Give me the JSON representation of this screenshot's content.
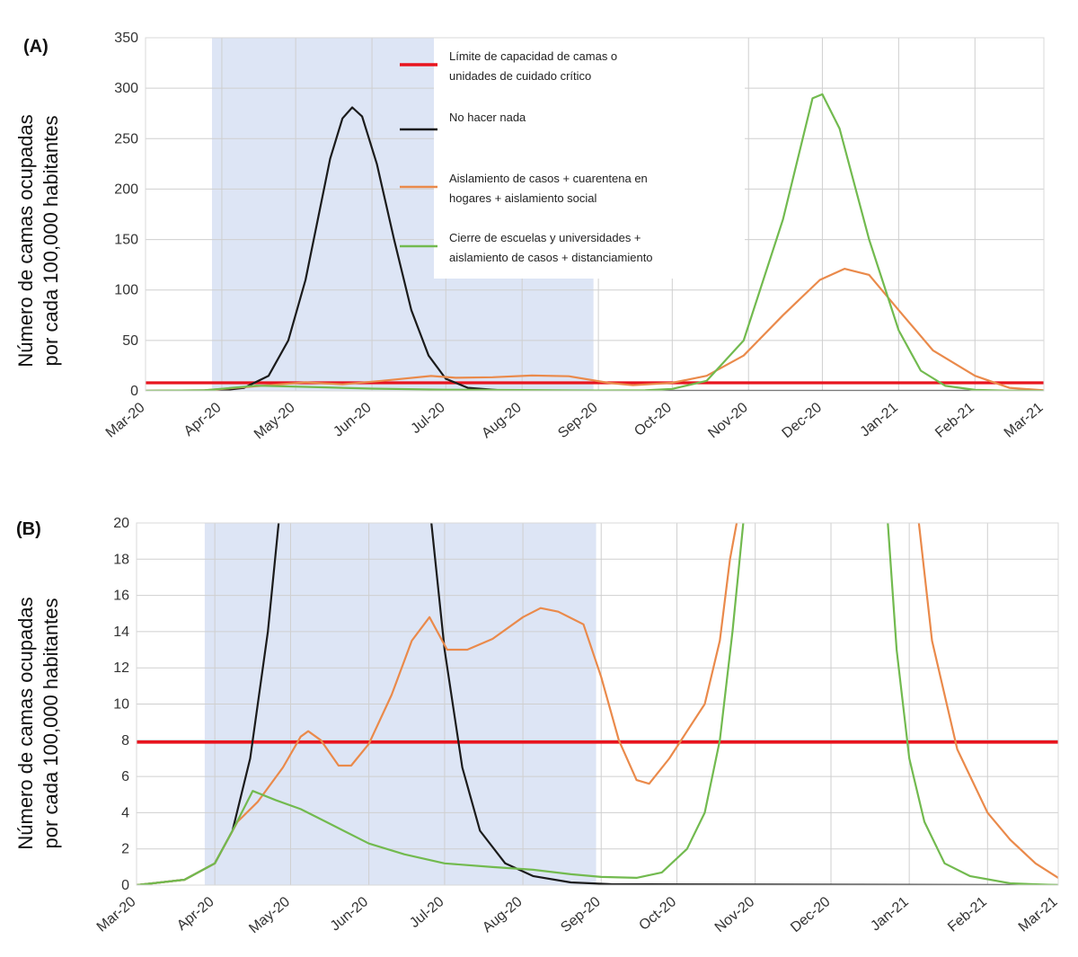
{
  "chart_data": [
    {
      "type": "line",
      "panel_label": "(A)",
      "ylabel_line1": "Número de camas ocupadas",
      "ylabel_line2": "por cada 100,000 habitantes",
      "x_tick_labels": [
        "Mar-20",
        "Apr-20",
        "May-20",
        "Jun-20",
        "Jul-20",
        "Aug-20",
        "Sep-20",
        "Oct-20",
        "Nov-20",
        "Dec-20",
        "Jan-21",
        "Feb-21",
        "Mar-21"
      ],
      "xlim": [
        "2020-03-01",
        "2021-03-01"
      ],
      "ylim": [
        0,
        350
      ],
      "y_ticks": [
        0,
        50,
        100,
        150,
        200,
        250,
        300,
        350
      ],
      "grid": true,
      "shaded_interval": [
        "2020-03-28",
        "2020-08-30"
      ],
      "shade_color": "#dde5f5",
      "legend_position": "top-center",
      "legend": [
        {
          "series": "capacity",
          "line1": "Límite de capacidad de camas o",
          "line2": "unidades de cuidado crítico"
        },
        {
          "series": "nothing",
          "line1": "No hacer nada",
          "line2": ""
        },
        {
          "series": "isolation",
          "line1": "Aislamiento de casos + cuarentena en",
          "line2": "hogares + aislamiento social"
        },
        {
          "series": "schools",
          "line1": "Cierre de escuelas y universidades +",
          "line2": "aislamiento de casos + distanciamiento"
        }
      ],
      "series": [
        {
          "id": "capacity",
          "color": "#e8141e",
          "width": 3.2,
          "points": [
            [
              "2020-03-01",
              8
            ],
            [
              "2021-03-01",
              8
            ]
          ]
        },
        {
          "id": "nothing",
          "color": "#1b1b1b",
          "width": 2.2,
          "points": [
            [
              "2020-03-01",
              0
            ],
            [
              "2020-04-01",
              0.5
            ],
            [
              "2020-04-10",
              3
            ],
            [
              "2020-04-20",
              15
            ],
            [
              "2020-04-28",
              50
            ],
            [
              "2020-05-05",
              110
            ],
            [
              "2020-05-10",
              170
            ],
            [
              "2020-05-15",
              230
            ],
            [
              "2020-05-20",
              270
            ],
            [
              "2020-05-24",
              281
            ],
            [
              "2020-05-28",
              272
            ],
            [
              "2020-06-03",
              225
            ],
            [
              "2020-06-10",
              150
            ],
            [
              "2020-06-17",
              80
            ],
            [
              "2020-06-24",
              35
            ],
            [
              "2020-07-01",
              12
            ],
            [
              "2020-07-10",
              3
            ],
            [
              "2020-07-25",
              0.3
            ],
            [
              "2020-09-01",
              0
            ],
            [
              "2021-03-01",
              0
            ]
          ]
        },
        {
          "id": "isolation",
          "color": "#ea8a4b",
          "width": 2.2,
          "points": [
            [
              "2020-03-01",
              0
            ],
            [
              "2020-03-25",
              0.5
            ],
            [
              "2020-04-15",
              4.6
            ],
            [
              "2020-05-05",
              8.5
            ],
            [
              "2020-05-20",
              6.5
            ],
            [
              "2020-06-05",
              10
            ],
            [
              "2020-06-25",
              14.8
            ],
            [
              "2020-07-05",
              13
            ],
            [
              "2020-07-20",
              13.5
            ],
            [
              "2020-08-05",
              15.2
            ],
            [
              "2020-08-20",
              14.5
            ],
            [
              "2020-09-05",
              8
            ],
            [
              "2020-09-15",
              5.6
            ],
            [
              "2020-10-01",
              8
            ],
            [
              "2020-10-15",
              15
            ],
            [
              "2020-10-30",
              35
            ],
            [
              "2020-11-15",
              75
            ],
            [
              "2020-11-30",
              110
            ],
            [
              "2020-12-10",
              121
            ],
            [
              "2020-12-20",
              115
            ],
            [
              "2021-01-01",
              80
            ],
            [
              "2021-01-15",
              40
            ],
            [
              "2021-02-01",
              15
            ],
            [
              "2021-02-15",
              3
            ],
            [
              "2021-03-01",
              0.5
            ]
          ]
        },
        {
          "id": "schools",
          "color": "#72ba4f",
          "width": 2.2,
          "points": [
            [
              "2020-03-01",
              0
            ],
            [
              "2020-03-25",
              0.5
            ],
            [
              "2020-04-15",
              5.2
            ],
            [
              "2020-05-05",
              4
            ],
            [
              "2020-06-01",
              2.2
            ],
            [
              "2020-07-01",
              1.2
            ],
            [
              "2020-08-01",
              0.8
            ],
            [
              "2020-09-01",
              0.4
            ],
            [
              "2020-09-20",
              0.5
            ],
            [
              "2020-10-01",
              2
            ],
            [
              "2020-10-15",
              10
            ],
            [
              "2020-10-30",
              50
            ],
            [
              "2020-11-15",
              170
            ],
            [
              "2020-11-27",
              290
            ],
            [
              "2020-12-01",
              294
            ],
            [
              "2020-12-08",
              260
            ],
            [
              "2020-12-20",
              150
            ],
            [
              "2021-01-01",
              60
            ],
            [
              "2021-01-10",
              20
            ],
            [
              "2021-01-20",
              5
            ],
            [
              "2021-02-01",
              1
            ],
            [
              "2021-02-15",
              0.2
            ],
            [
              "2021-03-01",
              0
            ]
          ]
        }
      ]
    },
    {
      "type": "line",
      "panel_label": "(B)",
      "ylabel_line1": "Número de camas ocupadas",
      "ylabel_line2": "por cada 100,000 habitantes",
      "x_tick_labels": [
        "Mar-20",
        "Apr-20",
        "May-20",
        "Jun-20",
        "Jul-20",
        "Aug-20",
        "Sep-20",
        "Oct-20",
        "Nov-20",
        "Dec-20",
        "Jan-21",
        "Feb-21",
        "Mar-21"
      ],
      "xlim": [
        "2020-03-01",
        "2021-03-01"
      ],
      "ylim": [
        0,
        20
      ],
      "y_ticks": [
        0,
        2,
        4,
        6,
        8,
        10,
        12,
        14,
        16,
        18,
        20
      ],
      "grid": true,
      "shaded_interval": [
        "2020-03-28",
        "2020-08-30"
      ],
      "shade_color": "#dde5f5",
      "series": [
        {
          "id": "capacity",
          "color": "#e8141e",
          "width": 3.6,
          "points": [
            [
              "2020-03-01",
              7.9
            ],
            [
              "2021-03-01",
              7.9
            ]
          ]
        },
        {
          "id": "nothing",
          "color": "#1b1b1b",
          "width": 2.2,
          "points": [
            [
              "2020-03-01",
              0
            ],
            [
              "2020-03-20",
              0.3
            ],
            [
              "2020-04-01",
              1.2
            ],
            [
              "2020-04-08",
              3
            ],
            [
              "2020-04-15",
              7
            ],
            [
              "2020-04-22",
              14
            ],
            [
              "2020-04-27",
              21
            ],
            [
              "2020-06-25",
              21
            ],
            [
              "2020-07-01",
              13
            ],
            [
              "2020-07-08",
              6.5
            ],
            [
              "2020-07-15",
              3
            ],
            [
              "2020-07-25",
              1.2
            ],
            [
              "2020-08-05",
              0.5
            ],
            [
              "2020-08-20",
              0.15
            ],
            [
              "2020-09-05",
              0.05
            ],
            [
              "2021-03-01",
              0
            ]
          ]
        },
        {
          "id": "isolation",
          "color": "#ea8a4b",
          "width": 2.2,
          "points": [
            [
              "2020-03-01",
              0
            ],
            [
              "2020-03-20",
              0.3
            ],
            [
              "2020-04-01",
              1.2
            ],
            [
              "2020-04-10",
              3.5
            ],
            [
              "2020-04-18",
              4.6
            ],
            [
              "2020-04-28",
              6.5
            ],
            [
              "2020-05-05",
              8.2
            ],
            [
              "2020-05-08",
              8.5
            ],
            [
              "2020-05-13",
              8
            ],
            [
              "2020-05-20",
              6.6
            ],
            [
              "2020-05-25",
              6.6
            ],
            [
              "2020-06-01",
              7.8
            ],
            [
              "2020-06-10",
              10.5
            ],
            [
              "2020-06-18",
              13.5
            ],
            [
              "2020-06-25",
              14.8
            ],
            [
              "2020-07-02",
              13
            ],
            [
              "2020-07-10",
              13
            ],
            [
              "2020-07-20",
              13.6
            ],
            [
              "2020-08-01",
              14.8
            ],
            [
              "2020-08-08",
              15.3
            ],
            [
              "2020-08-15",
              15.1
            ],
            [
              "2020-08-25",
              14.4
            ],
            [
              "2020-09-01",
              11.5
            ],
            [
              "2020-09-08",
              8
            ],
            [
              "2020-09-15",
              5.8
            ],
            [
              "2020-09-20",
              5.6
            ],
            [
              "2020-09-28",
              7
            ],
            [
              "2020-10-05",
              8.5
            ],
            [
              "2020-10-12",
              10
            ],
            [
              "2020-10-18",
              13.5
            ],
            [
              "2020-10-22",
              18
            ],
            [
              "2020-10-26",
              21
            ],
            [
              "2021-01-04",
              21
            ],
            [
              "2021-01-10",
              13.5
            ],
            [
              "2021-01-20",
              7.5
            ],
            [
              "2021-02-01",
              4
            ],
            [
              "2021-02-10",
              2.5
            ],
            [
              "2021-02-20",
              1.2
            ],
            [
              "2021-03-01",
              0.4
            ]
          ]
        },
        {
          "id": "schools",
          "color": "#72ba4f",
          "width": 2.2,
          "points": [
            [
              "2020-03-01",
              0
            ],
            [
              "2020-03-20",
              0.3
            ],
            [
              "2020-04-01",
              1.2
            ],
            [
              "2020-04-08",
              3
            ],
            [
              "2020-04-16",
              5.2
            ],
            [
              "2020-04-25",
              4.7
            ],
            [
              "2020-05-05",
              4.2
            ],
            [
              "2020-05-15",
              3.5
            ],
            [
              "2020-06-01",
              2.3
            ],
            [
              "2020-06-15",
              1.7
            ],
            [
              "2020-07-01",
              1.2
            ],
            [
              "2020-07-20",
              1
            ],
            [
              "2020-08-05",
              0.85
            ],
            [
              "2020-08-20",
              0.6
            ],
            [
              "2020-09-01",
              0.45
            ],
            [
              "2020-09-15",
              0.4
            ],
            [
              "2020-09-25",
              0.7
            ],
            [
              "2020-10-05",
              2
            ],
            [
              "2020-10-12",
              4
            ],
            [
              "2020-10-18",
              8
            ],
            [
              "2020-10-23",
              14
            ],
            [
              "2020-10-28",
              21
            ],
            [
              "2020-12-23",
              21
            ],
            [
              "2020-12-27",
              13
            ],
            [
              "2021-01-01",
              7
            ],
            [
              "2021-01-07",
              3.5
            ],
            [
              "2021-01-15",
              1.2
            ],
            [
              "2021-01-25",
              0.5
            ],
            [
              "2021-02-10",
              0.1
            ],
            [
              "2021-03-01",
              0
            ]
          ]
        }
      ]
    }
  ]
}
